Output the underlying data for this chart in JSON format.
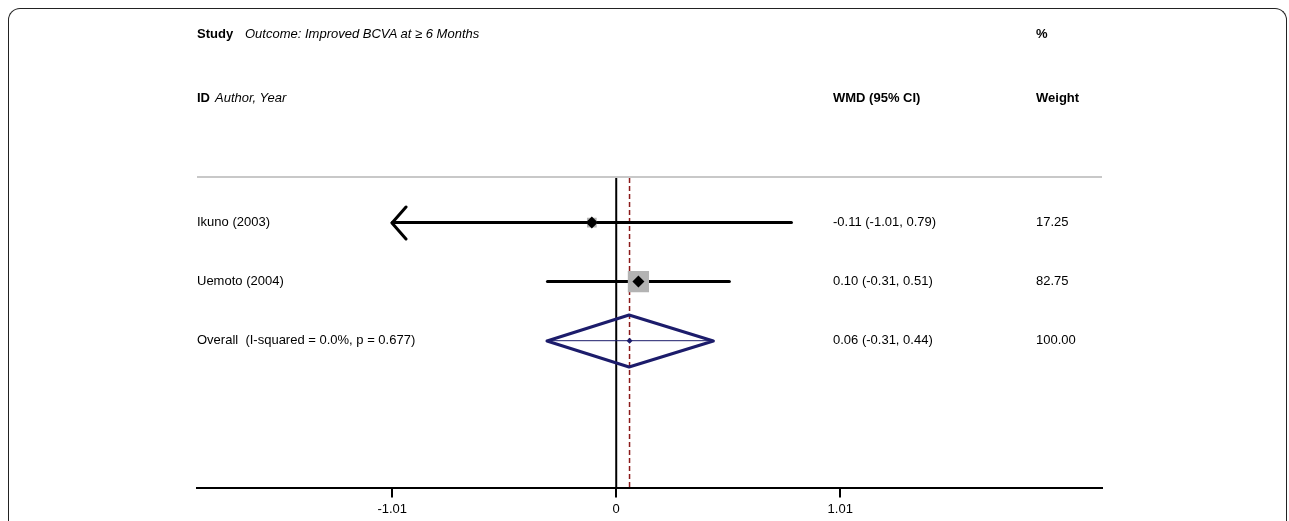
{
  "chart_data": {
    "type": "scatter",
    "orientation": "horizontal",
    "title": "Outcome: Improved BCVA at ≥ 6 Months",
    "annotations": [
      "Study",
      "ID",
      "Author, Year",
      "WMD (95% CI)",
      "%",
      "Weight",
      "-0.11 (-1.01, 0.79)",
      "17.25",
      "0.10 (-0.31, 0.51)",
      "82.75",
      "0.06 (-0.31, 0.44)",
      "100.00"
    ],
    "categories": [
      "Ikuno (2003)",
      "Uemoto (2004)",
      "Overall  (I-squared = 0.0%, p = 0.677)",
      null,
      null
    ],
    "series": [
      {
        "type": "bubble",
        "marker": "square",
        "color": "#b3b3b3",
        "values": [
          -0.11,
          0.1,
          null,
          null,
          null
        ],
        "sizes": [
          0.21,
          1,
          null,
          null,
          null
        ]
      },
      {
        "marker": "diamond",
        "color": "#000000",
        "values": [
          -0.11,
          0.1,
          null,
          null,
          null
        ],
        "errors": [
          [
            -1.01,
            0.79
          ],
          [
            -0.31,
            0.51
          ],
          null,
          null,
          null
        ]
      },
      {
        "marker": "diamond",
        "color": "#1c1c6b",
        "values": [
          null,
          null,
          0.06,
          null,
          null
        ],
        "errors": [
          null,
          null,
          [
            -0.31,
            0.44
          ],
          null,
          null
        ]
      }
    ],
    "ref_lines": [
      {
        "axis": "x",
        "value": 0,
        "color": "#000000",
        "line_style": "solid"
      },
      {
        "axis": "x",
        "value": 0.06,
        "color": "#8b1a1a",
        "line_style": "dashed"
      }
    ],
    "xlim": [
      -1.89,
      2.19
    ],
    "xticks": [
      -1.01,
      0,
      1.01
    ],
    "grid": false,
    "legend": false
  }
}
